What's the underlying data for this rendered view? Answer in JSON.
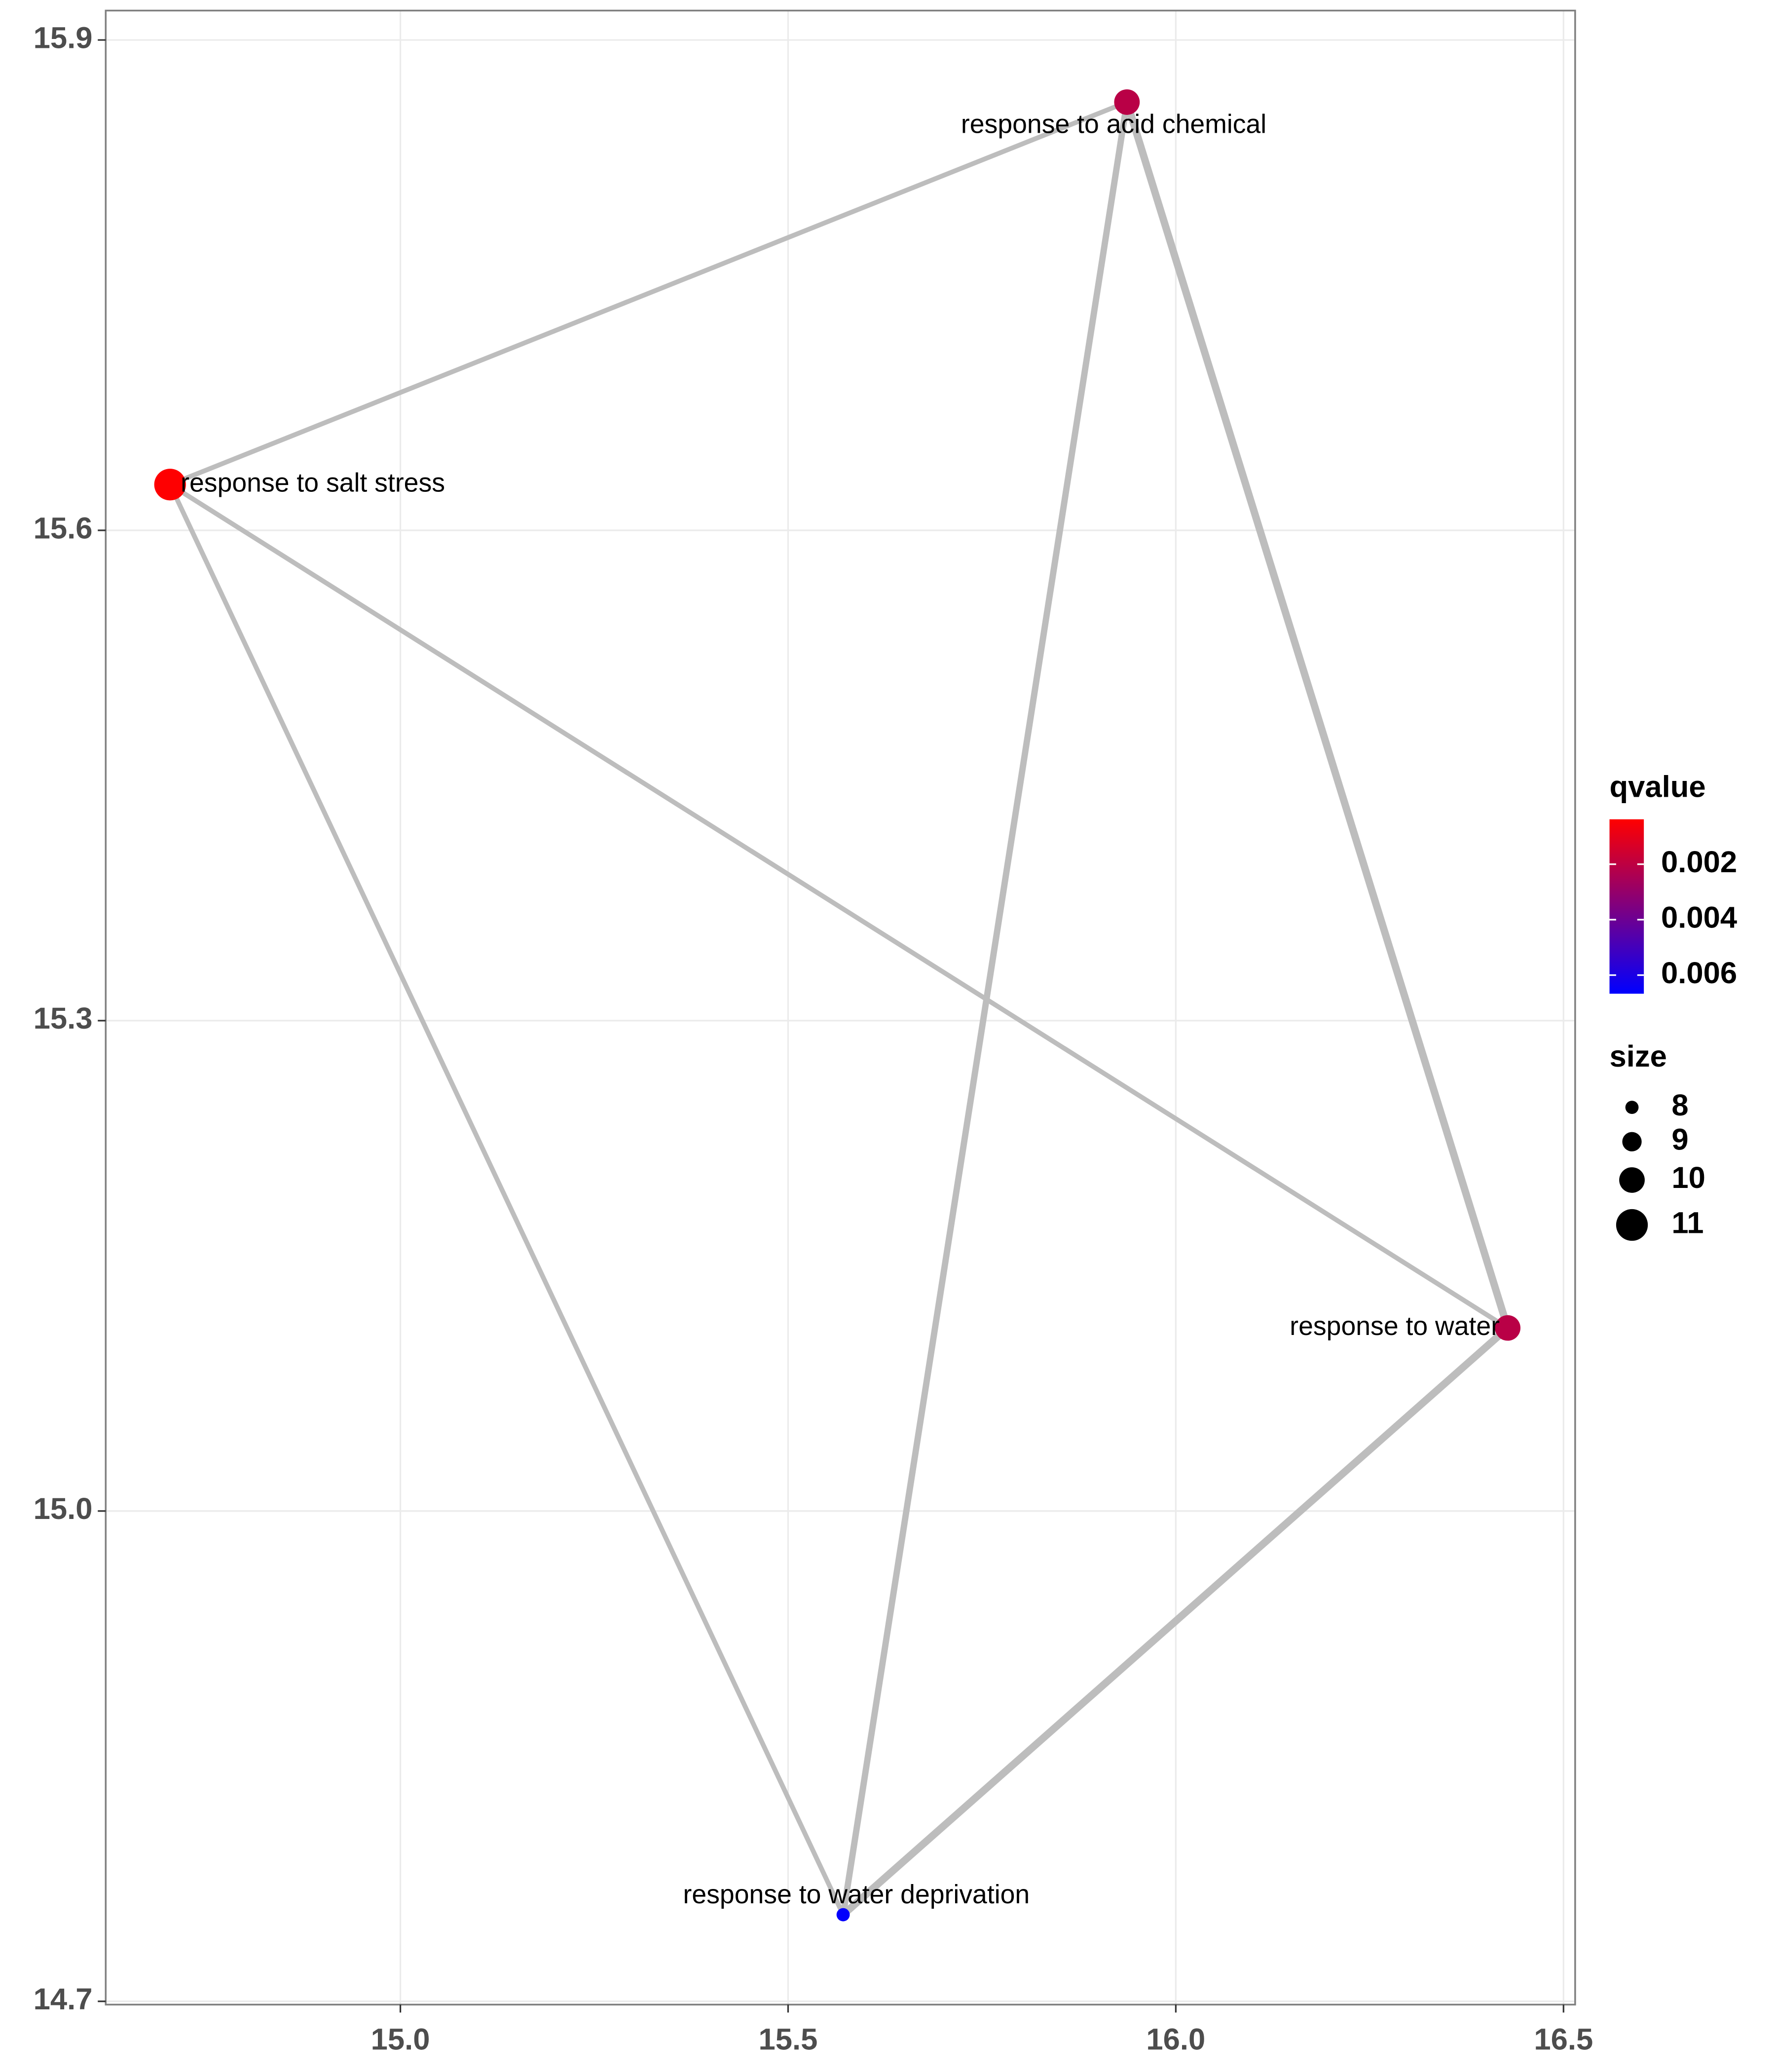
{
  "chart_data": {
    "type": "network",
    "xlim": [
      14.62,
      16.515
    ],
    "ylim": [
      14.698,
      15.918
    ],
    "xticks": [
      {
        "value": 15,
        "label": "15.0"
      },
      {
        "value": 15.5,
        "label": "15.5"
      },
      {
        "value": 16,
        "label": "16.0"
      },
      {
        "value": 16.5,
        "label": "16.5"
      }
    ],
    "yticks": [
      {
        "value": 14.7,
        "label": "14.7"
      },
      {
        "value": 15,
        "label": "15.0"
      },
      15.3,
      15.6,
      15.9
    ],
    "grid": true,
    "nodes": [
      {
        "name": "response to salt stress",
        "x": 14.703,
        "y": 15.628,
        "size": 11,
        "qvalue": 0.0004
      },
      {
        "name": "response to acid chemical",
        "x": 15.937,
        "y": 15.862,
        "size": 10,
        "qvalue": 0.0021
      },
      {
        "name": "response to water",
        "x": 16.428,
        "y": 15.112,
        "size": 10,
        "qvalue": 0.0021
      },
      {
        "name": "response to water deprivation",
        "x": 15.571,
        "y": 14.753,
        "size": 8,
        "qvalue": 0.0066
      }
    ],
    "edges": [
      {
        "source": 0,
        "target": 1,
        "weight": 0.45
      },
      {
        "source": 0,
        "target": 2,
        "weight": 0.45
      },
      {
        "source": 0,
        "target": 3,
        "weight": 0.45
      },
      {
        "source": 1,
        "target": 3,
        "weight": 0.6
      },
      {
        "source": 1,
        "target": 2,
        "weight": 0.7
      },
      {
        "source": 2,
        "target": 3,
        "weight": 0.7
      }
    ],
    "color_legend": {
      "title": "qvalue",
      "lim": [
        0.00038,
        0.00667
      ],
      "ticks": [
        0.002,
        0.004,
        0.006
      ],
      "low": "#ff0000",
      "high": "#0000ff"
    },
    "size_legend": {
      "title": "size",
      "breaks": [
        8,
        9,
        10,
        11
      ]
    }
  }
}
